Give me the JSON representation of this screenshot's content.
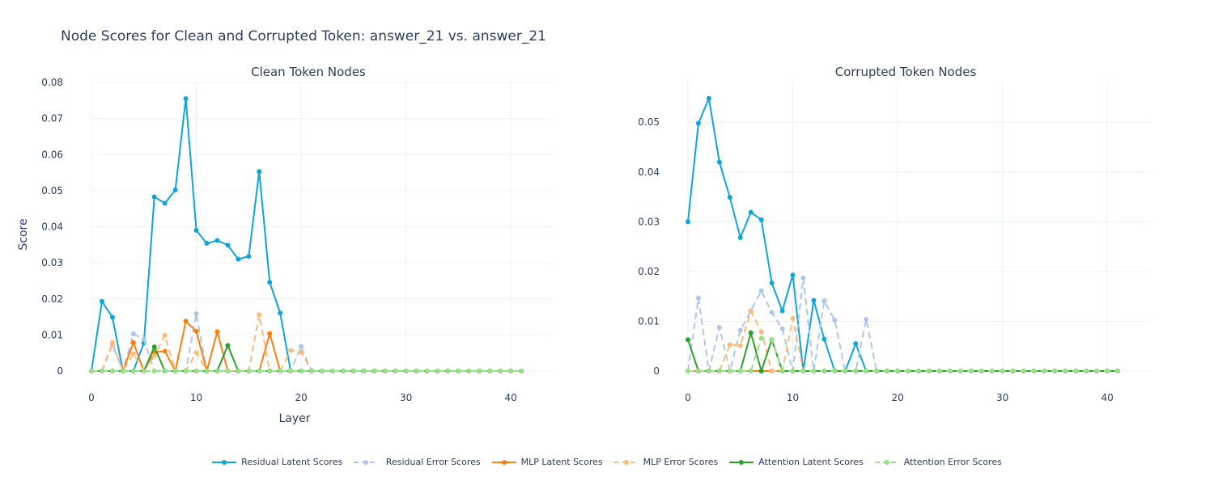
{
  "chart_data": [
    {
      "type": "line",
      "title": "Clean Token Nodes",
      "xlabel": "Layer",
      "ylabel": "Score",
      "xlim": [
        0,
        44
      ],
      "ylim": [
        0,
        0.08
      ],
      "xticks": [
        0,
        10,
        20,
        30,
        40
      ],
      "yticks": [
        0,
        0.01,
        0.02,
        0.03,
        0.04,
        0.05,
        0.06,
        0.07,
        0.08
      ],
      "ytick_labels": [
        "0",
        "0.01",
        "0.02",
        "0.03",
        "0.04",
        "0.05",
        "0.06",
        "0.07",
        "0.08"
      ],
      "x": [
        0,
        1,
        2,
        3,
        4,
        5,
        6,
        7,
        8,
        9,
        10,
        11,
        12,
        13,
        14,
        15,
        16,
        17,
        18,
        19,
        20,
        21,
        22,
        23,
        24,
        25,
        26,
        27,
        28,
        29,
        30,
        31,
        32,
        33,
        34,
        35,
        36,
        37,
        38,
        39,
        40,
        41
      ],
      "series": [
        {
          "name": "Residual Latent Scores",
          "color": "#0ea5d9",
          "dash": false,
          "values": [
            0,
            0.0193,
            0.0149,
            0,
            0,
            0.0078,
            0.0483,
            0.0465,
            0.0502,
            0.0755,
            0.039,
            0.0354,
            0.0362,
            0.0349,
            0.031,
            0.0318,
            0.0553,
            0.0246,
            0.0161,
            0,
            0,
            0,
            0,
            0,
            0,
            0,
            0,
            0,
            0,
            0,
            0,
            0,
            0,
            0,
            0,
            0,
            0,
            0,
            0,
            0,
            0,
            0
          ]
        },
        {
          "name": " Residual Error Scores",
          "color": "#aec7e8",
          "dash": true,
          "values": [
            0,
            0,
            0.0072,
            0,
            0.0103,
            0.0088,
            0,
            0,
            0,
            0,
            0.0159,
            0,
            0,
            0,
            0,
            0,
            0,
            0,
            0,
            0,
            0.0068,
            0,
            0,
            0,
            0,
            0,
            0,
            0,
            0,
            0,
            0,
            0,
            0,
            0,
            0,
            0,
            0,
            0,
            0,
            0,
            0,
            0
          ]
        },
        {
          "name": "MLP Latent Scores",
          "color": "#ff7f0e",
          "dash": false,
          "values": [
            0,
            0,
            0,
            0,
            0.0079,
            0,
            0.0052,
            0.0055,
            0,
            0.0138,
            0.011,
            0,
            0.0109,
            0,
            0,
            0,
            0,
            0.0104,
            0,
            0,
            0,
            0,
            0,
            0,
            0,
            0,
            0,
            0,
            0,
            0,
            0,
            0,
            0,
            0,
            0,
            0,
            0,
            0,
            0,
            0,
            0,
            0
          ]
        },
        {
          "name": "MLP Error Scores",
          "color": "#ffbb78",
          "dash": true,
          "values": [
            0,
            0,
            0.0079,
            0,
            0.0048,
            0,
            0.0042,
            0.0099,
            0,
            0,
            0.0051,
            0,
            0,
            0,
            0,
            0,
            0.0156,
            0,
            0,
            0.0057,
            0.0052,
            0,
            0,
            0,
            0,
            0,
            0,
            0,
            0,
            0,
            0,
            0,
            0,
            0,
            0,
            0,
            0,
            0,
            0,
            0,
            0,
            0
          ]
        },
        {
          "name": "Attention Latent Scores",
          "color": "#2ca02c",
          "dash": false,
          "values": [
            0,
            0,
            0,
            0,
            0,
            0,
            0.0067,
            0,
            0,
            0,
            0,
            0,
            0,
            0.0071,
            0,
            0,
            0,
            0,
            0,
            0,
            0,
            0,
            0,
            0,
            0,
            0,
            0,
            0,
            0,
            0,
            0,
            0,
            0,
            0,
            0,
            0,
            0,
            0,
            0,
            0,
            0,
            0
          ]
        },
        {
          "name": "Attention Error Scores",
          "color": "#98df8a",
          "dash": true,
          "values": [
            0,
            0,
            0,
            0,
            0,
            0,
            0,
            0,
            0,
            0,
            0,
            0,
            0,
            0,
            0,
            0,
            0,
            0,
            0,
            0,
            0,
            0,
            0,
            0,
            0,
            0,
            0,
            0,
            0,
            0,
            0,
            0,
            0,
            0,
            0,
            0,
            0,
            0,
            0,
            0,
            0,
            0
          ]
        }
      ]
    },
    {
      "type": "line",
      "title": "Corrupted Token Nodes",
      "xlabel": "",
      "ylabel": "",
      "xlim": [
        0,
        44
      ],
      "ylim": [
        0,
        0.058
      ],
      "xticks": [
        0,
        10,
        20,
        30,
        40
      ],
      "yticks": [
        0,
        0.01,
        0.02,
        0.03,
        0.04,
        0.05
      ],
      "ytick_labels": [
        "0",
        "0.01",
        "0.02",
        "0.03",
        "0.04",
        "0.05"
      ],
      "x": [
        0,
        1,
        2,
        3,
        4,
        5,
        6,
        7,
        8,
        9,
        10,
        11,
        12,
        13,
        14,
        15,
        16,
        17,
        18,
        19,
        20,
        21,
        22,
        23,
        24,
        25,
        26,
        27,
        28,
        29,
        30,
        31,
        32,
        33,
        34,
        35,
        36,
        37,
        38,
        39,
        40,
        41
      ],
      "series": [
        {
          "name": "Residual Latent Scores",
          "color": "#0ea5d9",
          "dash": false,
          "values": [
            0.03,
            0.0498,
            0.0548,
            0.042,
            0.0349,
            0.0268,
            0.0319,
            0.0304,
            0.0177,
            0.0121,
            0.0193,
            0,
            0.0142,
            0.0064,
            0,
            0,
            0.0055,
            0,
            0,
            0,
            0,
            0,
            0,
            0,
            0,
            0,
            0,
            0,
            0,
            0,
            0,
            0,
            0,
            0,
            0,
            0,
            0,
            0,
            0,
            0,
            0,
            0
          ]
        },
        {
          "name": " Residual Error Scores",
          "color": "#aec7e8",
          "dash": true,
          "values": [
            0,
            0.0147,
            0,
            0.0088,
            0,
            0.0082,
            0.0121,
            0.0161,
            0.0118,
            0.0085,
            0,
            0.0187,
            0,
            0.0141,
            0.0102,
            0,
            0,
            0.0104,
            0,
            0,
            0,
            0,
            0,
            0,
            0,
            0,
            0,
            0,
            0,
            0,
            0,
            0,
            0,
            0,
            0,
            0,
            0,
            0,
            0,
            0,
            0,
            0
          ]
        },
        {
          "name": "MLP Latent Scores",
          "color": "#ff7f0e",
          "dash": false,
          "values": [
            0,
            0,
            0,
            0,
            0,
            0,
            0,
            0,
            0,
            0,
            0,
            0,
            0,
            0,
            0,
            0,
            0,
            0,
            0,
            0,
            0,
            0,
            0,
            0,
            0,
            0,
            0,
            0,
            0,
            0,
            0,
            0,
            0,
            0,
            0,
            0,
            0,
            0,
            0,
            0,
            0,
            0
          ]
        },
        {
          "name": "MLP Error Scores",
          "color": "#ffbb78",
          "dash": true,
          "values": [
            0,
            0,
            0,
            0,
            0.0053,
            0.0051,
            0.012,
            0.0079,
            0,
            0,
            0.0106,
            0,
            0,
            0,
            0,
            0,
            0,
            0,
            0,
            0,
            0,
            0,
            0,
            0,
            0,
            0,
            0,
            0,
            0,
            0,
            0,
            0,
            0,
            0,
            0,
            0,
            0,
            0,
            0,
            0,
            0,
            0
          ]
        },
        {
          "name": "Attention Latent Scores",
          "color": "#2ca02c",
          "dash": false,
          "values": [
            0.0063,
            0,
            0,
            0,
            0,
            0,
            0.0077,
            0,
            0.0063,
            0,
            0,
            0,
            0,
            0,
            0,
            0,
            0,
            0,
            0,
            0,
            0,
            0,
            0,
            0,
            0,
            0,
            0,
            0,
            0,
            0,
            0,
            0,
            0,
            0,
            0,
            0,
            0,
            0,
            0,
            0,
            0,
            0
          ]
        },
        {
          "name": "Attention Error Scores",
          "color": "#98df8a",
          "dash": true,
          "values": [
            0,
            0,
            0,
            0,
            0,
            0,
            0,
            0.0066,
            0.0063,
            0,
            0,
            0,
            0,
            0,
            0,
            0,
            0,
            0,
            0,
            0,
            0,
            0,
            0,
            0,
            0,
            0,
            0,
            0,
            0,
            0,
            0,
            0,
            0,
            0,
            0,
            0,
            0,
            0,
            0,
            0,
            0,
            0
          ]
        }
      ]
    }
  ],
  "page": {
    "title": "Node Scores for Clean and Corrupted Token:  answer_21 vs.  answer_21"
  }
}
